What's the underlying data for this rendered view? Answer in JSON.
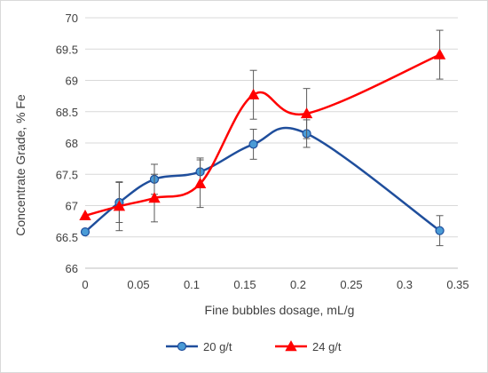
{
  "chart_data": {
    "type": "scatter",
    "title": "",
    "xlabel": "Fine bubbles dosage, mL/g",
    "ylabel": "Concentrate Grade,  % Fe",
    "xlim": [
      0,
      0.35
    ],
    "ylim": [
      66,
      70
    ],
    "x_ticks": [
      "0",
      "0.05",
      "0.1",
      "0.15",
      "0.2",
      "0.25",
      "0.3",
      "0.35"
    ],
    "y_ticks": [
      "66",
      "66.5",
      "67",
      "67.5",
      "68",
      "68.5",
      "69",
      "69.5",
      "70"
    ],
    "grid": "horizontal",
    "legend_position": "bottom",
    "series": [
      {
        "name": "20 g/t",
        "color": "#1f4e9c",
        "marker": "circle",
        "marker_color": "#4a9bd6",
        "x": [
          0,
          0.032,
          0.065,
          0.108,
          0.158,
          0.208,
          0.333
        ],
        "y": [
          66.58,
          67.05,
          67.42,
          67.54,
          67.98,
          68.15,
          66.6
        ],
        "err": [
          0,
          0.32,
          0.24,
          0.22,
          0.24,
          0.22,
          0.24
        ]
      },
      {
        "name": "24 g/t",
        "color": "#ff0000",
        "marker": "triangle",
        "marker_color": "#ff0000",
        "x": [
          0,
          0.032,
          0.065,
          0.108,
          0.158,
          0.208,
          0.333
        ],
        "y": [
          66.84,
          66.99,
          67.12,
          67.35,
          68.77,
          68.47,
          69.41
        ],
        "err": [
          0,
          0.39,
          0.38,
          0.38,
          0.39,
          0.4,
          0.39
        ]
      }
    ]
  }
}
